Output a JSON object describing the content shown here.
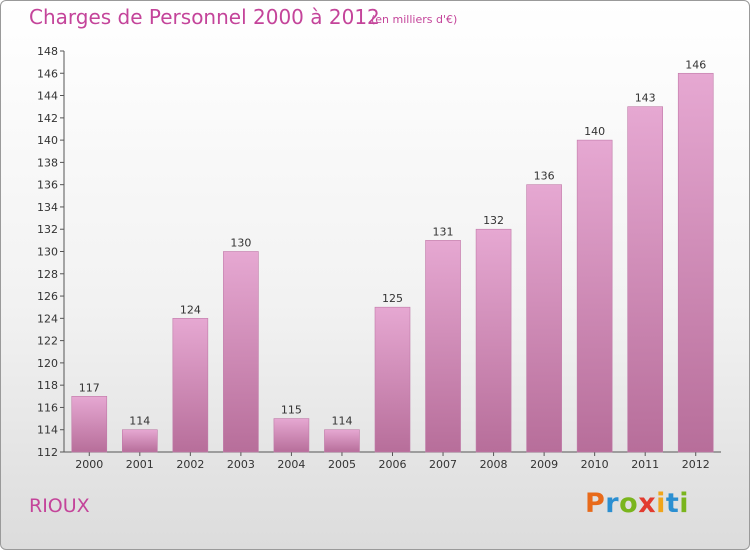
{
  "header": {
    "title": "Charges de Personnel 2000 à 2012",
    "subtitle": "(en milliers d'€)"
  },
  "footer": {
    "commune": "RIOUX",
    "logo_letters": [
      "P",
      "r",
      "o",
      "x",
      "i",
      "t",
      "i"
    ]
  },
  "colors": {
    "title": "#c4449a",
    "bar_top": "#e6a8d2",
    "bar_bottom": "#b76e9a",
    "logo": [
      "#e86a1a",
      "#2b8fd1",
      "#7ab51d",
      "#e23b2f",
      "#f0a51c",
      "#2b8fd1",
      "#7ab51d"
    ]
  },
  "chart_data": {
    "type": "bar",
    "title": "Charges de Personnel 2000 à 2012",
    "subtitle": "(en milliers d'€)",
    "categories": [
      "2000",
      "2001",
      "2002",
      "2003",
      "2004",
      "2005",
      "2006",
      "2007",
      "2008",
      "2009",
      "2010",
      "2011",
      "2012"
    ],
    "values": [
      117,
      114,
      124,
      130,
      115,
      114,
      125,
      131,
      132,
      136,
      140,
      143,
      146
    ],
    "ylim": [
      112,
      148
    ],
    "yticks": [
      112,
      114,
      116,
      118,
      120,
      122,
      124,
      126,
      128,
      130,
      132,
      134,
      136,
      138,
      140,
      142,
      144,
      146,
      148
    ],
    "grid": false,
    "legend": "none"
  }
}
